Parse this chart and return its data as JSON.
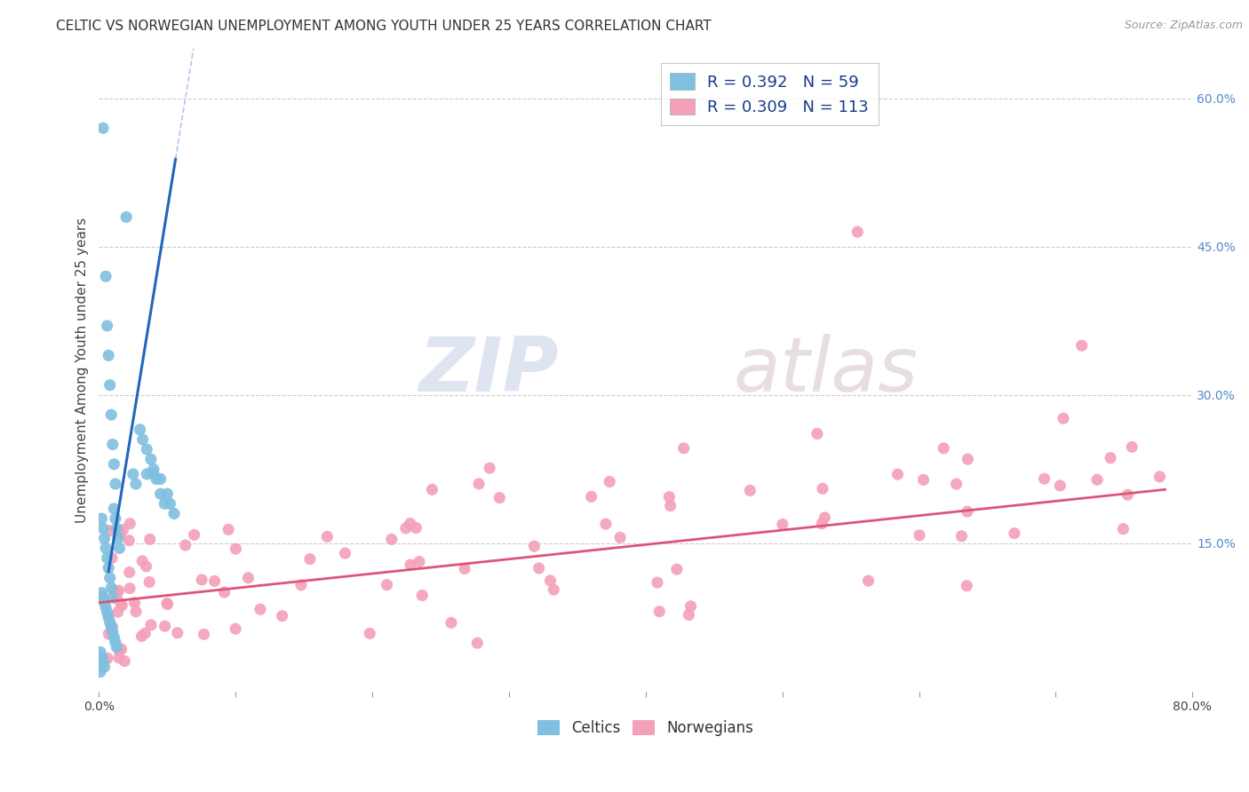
{
  "title": "CELTIC VS NORWEGIAN UNEMPLOYMENT AMONG YOUTH UNDER 25 YEARS CORRELATION CHART",
  "source": "Source: ZipAtlas.com",
  "ylabel": "Unemployment Among Youth under 25 years",
  "xlim": [
    0.0,
    0.8
  ],
  "ylim": [
    0.0,
    0.65
  ],
  "xticks": [
    0.0,
    0.1,
    0.2,
    0.3,
    0.4,
    0.5,
    0.6,
    0.7,
    0.8
  ],
  "xticklabels": [
    "0.0%",
    "",
    "",
    "",
    "",
    "",
    "",
    "",
    "80.0%"
  ],
  "yticks_right": [
    0.15,
    0.3,
    0.45,
    0.6
  ],
  "ytick_right_labels": [
    "15.0%",
    "30.0%",
    "45.0%",
    "60.0%"
  ],
  "celtics_R": 0.392,
  "celtics_N": 59,
  "norwegians_R": 0.309,
  "norwegians_N": 113,
  "celtics_color": "#7fbfdf",
  "celtics_line_color": "#2266bb",
  "norwegians_color": "#f4a0b8",
  "norwegians_line_color": "#dd5577",
  "watermark_zip": "ZIP",
  "watermark_atlas": "atlas",
  "background_color": "#ffffff",
  "grid_color": "#cccccc",
  "title_fontsize": 11,
  "axis_label_fontsize": 11,
  "tick_fontsize": 10,
  "legend_fontsize": 13
}
